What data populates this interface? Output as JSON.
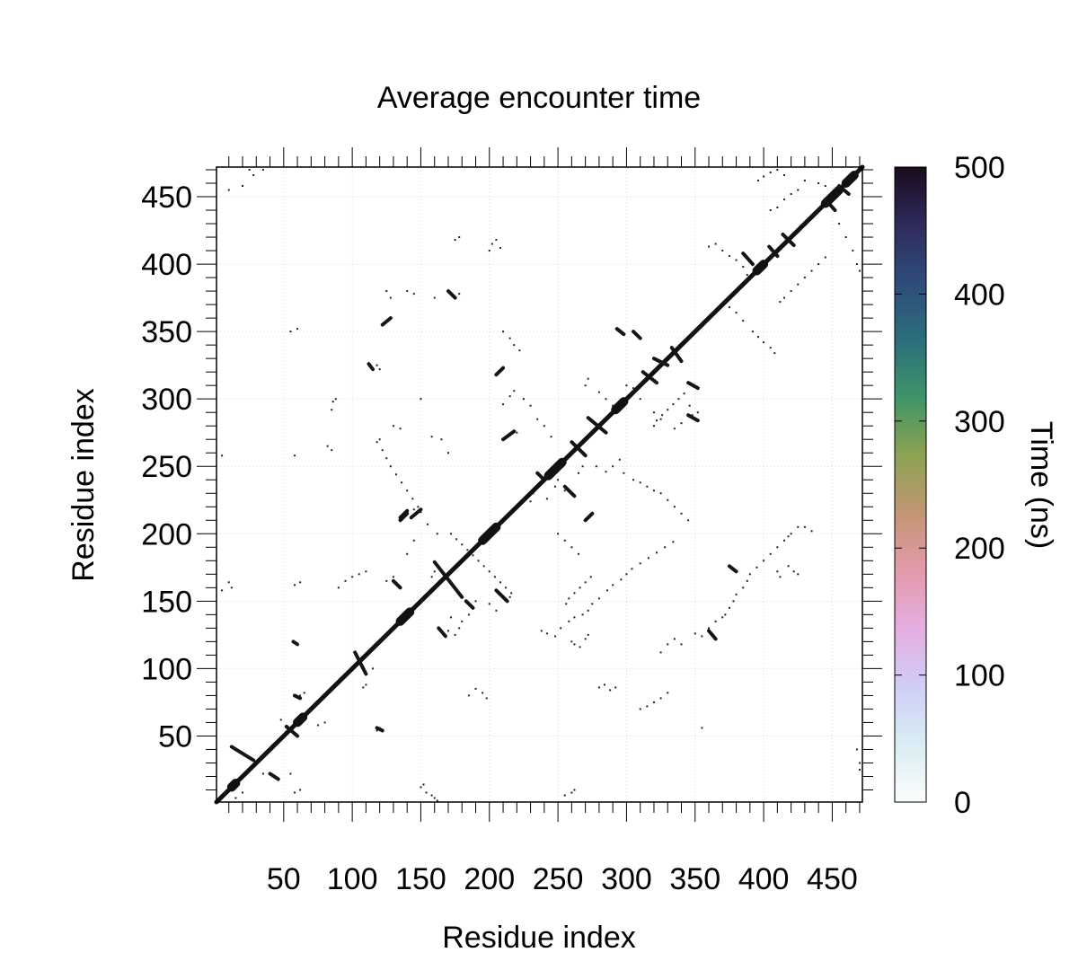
{
  "chart_data": {
    "type": "heatmap",
    "title": "Average encounter time",
    "xlabel": "Residue index",
    "ylabel": "Residue index",
    "xlim": [
      1,
      472
    ],
    "ylim": [
      1,
      472
    ],
    "x_ticks": [
      50,
      100,
      150,
      200,
      250,
      300,
      350,
      400,
      450
    ],
    "y_ticks": [
      50,
      100,
      150,
      200,
      250,
      300,
      350,
      400,
      450
    ],
    "grid": true,
    "colorbar": {
      "label": "Time (ns)",
      "range": [
        0,
        500
      ],
      "ticks": [
        0,
        100,
        200,
        300,
        400,
        500
      ],
      "colors": [
        "#fbfefb",
        "#d9edf3",
        "#cfcef6",
        "#e3aee0",
        "#e49aab",
        "#c29674",
        "#8da351",
        "#3e9566",
        "#2a6f7b",
        "#2e4c7b",
        "#2f2b5c",
        "#1a0b1c"
      ]
    },
    "diagonal": {
      "from": 1,
      "to": 472,
      "value": 500
    },
    "segments": [
      [
        12,
        42,
        28,
        32
      ],
      [
        40,
        22,
        46,
        18
      ],
      [
        52,
        57,
        60,
        50
      ],
      [
        57,
        120,
        60,
        118
      ],
      [
        58,
        80,
        62,
        78
      ],
      [
        102,
        112,
        110,
        96
      ],
      [
        118,
        56,
        122,
        54
      ],
      [
        130,
        165,
        135,
        160
      ],
      [
        135,
        210,
        140,
        215
      ],
      [
        143,
        212,
        150,
        218
      ],
      [
        160,
        179,
        180,
        153
      ],
      [
        163,
        130,
        168,
        124
      ],
      [
        170,
        380,
        175,
        375
      ],
      [
        183,
        150,
        188,
        145
      ],
      [
        205,
        158,
        213,
        150
      ],
      [
        210,
        270,
        218,
        276
      ],
      [
        235,
        245,
        240,
        240
      ],
      [
        255,
        235,
        262,
        228
      ],
      [
        260,
        268,
        270,
        258
      ],
      [
        270,
        210,
        275,
        215
      ],
      [
        272,
        286,
        285,
        275
      ],
      [
        293,
        352,
        298,
        348
      ],
      [
        305,
        350,
        310,
        345
      ],
      [
        312,
        320,
        322,
        312
      ],
      [
        320,
        330,
        330,
        325
      ],
      [
        333,
        338,
        340,
        328
      ],
      [
        345,
        288,
        352,
        284
      ],
      [
        345,
        312,
        352,
        308
      ],
      [
        360,
        128,
        365,
        122
      ],
      [
        375,
        176,
        380,
        172
      ],
      [
        385,
        408,
        392,
        400
      ],
      [
        404,
        413,
        410,
        406
      ],
      [
        414,
        422,
        422,
        414
      ],
      [
        445,
        448,
        452,
        440
      ],
      [
        455,
        458,
        462,
        452
      ],
      [
        112,
        326,
        115,
        322
      ],
      [
        122,
        355,
        128,
        360
      ],
      [
        135,
        212,
        140,
        217
      ],
      [
        205,
        318,
        210,
        323
      ]
    ],
    "points": [
      [
        5,
        258
      ],
      [
        5,
        158
      ],
      [
        10,
        164
      ],
      [
        12,
        160
      ],
      [
        10,
        455
      ],
      [
        20,
        458
      ],
      [
        25,
        470
      ],
      [
        28,
        466
      ],
      [
        35,
        470
      ],
      [
        15,
        4
      ],
      [
        20,
        8
      ],
      [
        35,
        22
      ],
      [
        48,
        62
      ],
      [
        52,
        56
      ],
      [
        55,
        22
      ],
      [
        58,
        8
      ],
      [
        62,
        10
      ],
      [
        60,
        118
      ],
      [
        62,
        80
      ],
      [
        65,
        82
      ],
      [
        75,
        58
      ],
      [
        80,
        60
      ],
      [
        82,
        265
      ],
      [
        85,
        292
      ],
      [
        86,
        298
      ],
      [
        88,
        300
      ],
      [
        85,
        262
      ],
      [
        58,
        258
      ],
      [
        55,
        350
      ],
      [
        60,
        352
      ],
      [
        58,
        162
      ],
      [
        62,
        164
      ],
      [
        108,
        86
      ],
      [
        110,
        88
      ],
      [
        115,
        100
      ],
      [
        118,
        54
      ],
      [
        120,
        56
      ],
      [
        125,
        165
      ],
      [
        130,
        168
      ],
      [
        140,
        185
      ],
      [
        145,
        195
      ],
      [
        150,
        300
      ],
      [
        158,
        272
      ],
      [
        165,
        270
      ],
      [
        170,
        260
      ],
      [
        130,
        280
      ],
      [
        135,
        278
      ],
      [
        175,
        418
      ],
      [
        178,
        420
      ],
      [
        178,
        378
      ],
      [
        128,
        375
      ],
      [
        125,
        380
      ],
      [
        140,
        380
      ],
      [
        145,
        378
      ],
      [
        160,
        375
      ],
      [
        120,
        322
      ],
      [
        118,
        325
      ],
      [
        145,
        218
      ],
      [
        150,
        216
      ],
      [
        155,
        207
      ],
      [
        158,
        168
      ],
      [
        160,
        172
      ],
      [
        162,
        200
      ],
      [
        170,
        128
      ],
      [
        175,
        125
      ],
      [
        180,
        135
      ],
      [
        185,
        140
      ],
      [
        190,
        150
      ],
      [
        200,
        148
      ],
      [
        205,
        143
      ],
      [
        215,
        153
      ],
      [
        210,
        296
      ],
      [
        215,
        302
      ],
      [
        218,
        306
      ],
      [
        225,
        300
      ],
      [
        230,
        295
      ],
      [
        235,
        285
      ],
      [
        240,
        280
      ],
      [
        245,
        272
      ],
      [
        220,
        275
      ],
      [
        225,
        226
      ],
      [
        230,
        224
      ],
      [
        232,
        230
      ],
      [
        242,
        226
      ],
      [
        248,
        235
      ],
      [
        250,
        240
      ],
      [
        255,
        232
      ],
      [
        265,
        245
      ],
      [
        268,
        250
      ],
      [
        278,
        250
      ],
      [
        285,
        246
      ],
      [
        290,
        250
      ],
      [
        295,
        255
      ],
      [
        298,
        245
      ],
      [
        305,
        240
      ],
      [
        310,
        238
      ],
      [
        315,
        235
      ],
      [
        320,
        232
      ],
      [
        325,
        230
      ],
      [
        330,
        225
      ],
      [
        335,
        220
      ],
      [
        340,
        215
      ],
      [
        345,
        210
      ],
      [
        270,
        310
      ],
      [
        272,
        315
      ],
      [
        280,
        305
      ],
      [
        285,
        300
      ],
      [
        290,
        295
      ],
      [
        300,
        310
      ],
      [
        305,
        308
      ],
      [
        310,
        300
      ],
      [
        320,
        290
      ],
      [
        325,
        285
      ],
      [
        335,
        278
      ],
      [
        340,
        282
      ],
      [
        346,
        295
      ],
      [
        348,
        288
      ],
      [
        352,
        290
      ],
      [
        355,
        56
      ],
      [
        325,
        112
      ],
      [
        330,
        118
      ],
      [
        335,
        122
      ],
      [
        340,
        118
      ],
      [
        350,
        126
      ],
      [
        355,
        124
      ],
      [
        360,
        130
      ],
      [
        365,
        135
      ],
      [
        370,
        138
      ],
      [
        372,
        140
      ],
      [
        375,
        145
      ],
      [
        378,
        150
      ],
      [
        380,
        155
      ],
      [
        385,
        160
      ],
      [
        388,
        165
      ],
      [
        390,
        170
      ],
      [
        395,
        175
      ],
      [
        400,
        180
      ],
      [
        405,
        185
      ],
      [
        410,
        190
      ],
      [
        415,
        195
      ],
      [
        420,
        200
      ],
      [
        425,
        205
      ],
      [
        418,
        198
      ],
      [
        422,
        172
      ],
      [
        418,
        176
      ],
      [
        425,
        170
      ],
      [
        430,
        205
      ],
      [
        435,
        202
      ],
      [
        410,
        172
      ],
      [
        412,
        168
      ],
      [
        360,
        413
      ],
      [
        365,
        415
      ],
      [
        370,
        410
      ],
      [
        375,
        406
      ],
      [
        380,
        403
      ],
      [
        385,
        398
      ],
      [
        388,
        392
      ],
      [
        372,
        372
      ],
      [
        375,
        368
      ],
      [
        380,
        364
      ],
      [
        385,
        358
      ],
      [
        392,
        350
      ],
      [
        396,
        346
      ],
      [
        400,
        342
      ],
      [
        405,
        338
      ],
      [
        408,
        334
      ],
      [
        412,
        372
      ],
      [
        415,
        375
      ],
      [
        420,
        380
      ],
      [
        425,
        385
      ],
      [
        430,
        390
      ],
      [
        435,
        395
      ],
      [
        440,
        400
      ],
      [
        445,
        405
      ],
      [
        455,
        430
      ],
      [
        460,
        420
      ],
      [
        465,
        410
      ],
      [
        468,
        400
      ],
      [
        470,
        395
      ],
      [
        468,
        40
      ],
      [
        470,
        30
      ],
      [
        470,
        25
      ],
      [
        440,
        460
      ],
      [
        445,
        458
      ],
      [
        430,
        462
      ],
      [
        425,
        455
      ],
      [
        420,
        452
      ],
      [
        415,
        448
      ],
      [
        410,
        442
      ],
      [
        405,
        440
      ],
      [
        396,
        462
      ],
      [
        400,
        465
      ],
      [
        405,
        468
      ],
      [
        410,
        470
      ],
      [
        415,
        466
      ],
      [
        260,
        8
      ],
      [
        262,
        10
      ],
      [
        255,
        6
      ],
      [
        185,
        80
      ],
      [
        190,
        85
      ],
      [
        195,
        82
      ],
      [
        198,
        78
      ],
      [
        210,
        350
      ],
      [
        215,
        345
      ],
      [
        218,
        340
      ],
      [
        222,
        336
      ],
      [
        250,
        200
      ],
      [
        255,
        195
      ],
      [
        260,
        190
      ],
      [
        265,
        185
      ],
      [
        238,
        128
      ],
      [
        242,
        126
      ],
      [
        248,
        124
      ],
      [
        252,
        130
      ],
      [
        258,
        135
      ],
      [
        262,
        138
      ],
      [
        268,
        140
      ],
      [
        272,
        143
      ],
      [
        275,
        148
      ],
      [
        280,
        152
      ],
      [
        286,
        158
      ],
      [
        290,
        162
      ],
      [
        296,
        166
      ],
      [
        300,
        170
      ],
      [
        304,
        174
      ],
      [
        310,
        178
      ],
      [
        316,
        182
      ],
      [
        322,
        186
      ],
      [
        328,
        190
      ],
      [
        334,
        194
      ],
      [
        256,
        148
      ],
      [
        258,
        152
      ],
      [
        262,
        156
      ],
      [
        266,
        160
      ],
      [
        270,
        164
      ],
      [
        274,
        168
      ],
      [
        178,
        130
      ],
      [
        172,
        138
      ],
      [
        150,
        12
      ],
      [
        152,
        14
      ],
      [
        154,
        8
      ],
      [
        158,
        6
      ],
      [
        160,
        4
      ],
      [
        162,
        2
      ],
      [
        118,
        268
      ],
      [
        120,
        270
      ],
      [
        122,
        262
      ],
      [
        125,
        256
      ],
      [
        128,
        250
      ],
      [
        132,
        244
      ],
      [
        136,
        238
      ],
      [
        140,
        232
      ],
      [
        144,
        226
      ],
      [
        148,
        220
      ],
      [
        90,
        160
      ],
      [
        95,
        165
      ],
      [
        100,
        168
      ],
      [
        105,
        170
      ],
      [
        110,
        172
      ],
      [
        172,
        200
      ],
      [
        176,
        196
      ],
      [
        180,
        192
      ],
      [
        184,
        188
      ],
      [
        188,
        184
      ],
      [
        192,
        180
      ],
      [
        196,
        176
      ],
      [
        200,
        172
      ],
      [
        204,
        168
      ],
      [
        208,
        164
      ],
      [
        212,
        160
      ],
      [
        216,
        156
      ],
      [
        310,
        70
      ],
      [
        315,
        72
      ],
      [
        320,
        75
      ],
      [
        325,
        78
      ],
      [
        330,
        82
      ],
      [
        280,
        86
      ],
      [
        284,
        88
      ],
      [
        288,
        84
      ],
      [
        292,
        86
      ],
      [
        260,
        120
      ],
      [
        262,
        118
      ],
      [
        266,
        116
      ],
      [
        270,
        122
      ],
      [
        272,
        125
      ],
      [
        200,
        410
      ],
      [
        202,
        415
      ],
      [
        205,
        418
      ],
      [
        208,
        412
      ],
      [
        320,
        280
      ],
      [
        322,
        284
      ],
      [
        326,
        288
      ],
      [
        330,
        292
      ],
      [
        334,
        296
      ],
      [
        338,
        300
      ],
      [
        342,
        304
      ]
    ]
  }
}
